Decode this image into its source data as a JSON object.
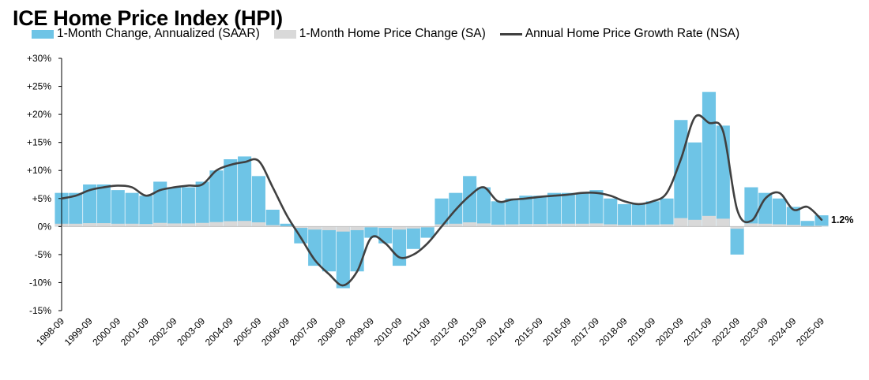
{
  "title": "ICE Home Price Index (HPI)",
  "chart_data": {
    "type": "bar",
    "title": "ICE Home Price Index (HPI)",
    "xlabel": "",
    "ylabel": "",
    "ylim": [
      -15,
      30
    ],
    "yticks": [
      30,
      25,
      20,
      15,
      10,
      5,
      0,
      -5,
      -10,
      -15
    ],
    "ytick_labels": [
      "+30%",
      "+25%",
      "+20%",
      "+15%",
      "+10%",
      "+5%",
      "0%",
      "-5%",
      "-10%",
      "-15%"
    ],
    "x_start": "1998-09",
    "x_end": "2025-09",
    "xtick_labels": [
      "1998-09",
      "1999-09",
      "2000-09",
      "2001-09",
      "2002-09",
      "2003-09",
      "2004-09",
      "2005-09",
      "2006-09",
      "2007-09",
      "2008-09",
      "2009-09",
      "2010-09",
      "2011-09",
      "2012-09",
      "2013-09",
      "2014-09",
      "2015-09",
      "2016-09",
      "2017-09",
      "2018-09",
      "2019-09",
      "2020-09",
      "2021-09",
      "2022-09",
      "2023-09",
      "2024-09",
      "2025-09"
    ],
    "grid": false,
    "legend_position": "top-left",
    "end_label": "1.2%",
    "series": [
      {
        "name": "1-Month Change, Annualized (SAAR)",
        "type": "bar",
        "color": "#6ec4e6",
        "x": [
          "1998-09",
          "1999-03",
          "1999-09",
          "2000-03",
          "2000-09",
          "2001-03",
          "2001-09",
          "2002-03",
          "2002-09",
          "2003-03",
          "2003-09",
          "2004-03",
          "2004-09",
          "2005-03",
          "2005-09",
          "2006-03",
          "2006-09",
          "2007-03",
          "2007-09",
          "2008-03",
          "2008-09",
          "2009-03",
          "2009-09",
          "2010-03",
          "2010-09",
          "2011-03",
          "2011-09",
          "2012-03",
          "2012-09",
          "2013-03",
          "2013-09",
          "2014-03",
          "2014-09",
          "2015-03",
          "2015-09",
          "2016-03",
          "2016-09",
          "2017-03",
          "2017-09",
          "2018-03",
          "2018-09",
          "2019-03",
          "2019-09",
          "2020-03",
          "2020-09",
          "2021-03",
          "2021-09",
          "2022-03",
          "2022-09",
          "2023-03",
          "2023-09",
          "2024-03",
          "2024-09",
          "2025-03",
          "2025-09"
        ],
        "values": [
          6,
          6,
          7.5,
          7.5,
          6.5,
          6,
          5.5,
          8,
          7,
          7,
          8,
          10,
          12,
          12.5,
          9,
          3,
          0.5,
          -3,
          -7,
          -8,
          -11,
          -8,
          -2,
          -3,
          -7,
          -4,
          -2,
          5,
          6,
          9,
          7,
          4.5,
          5,
          5.5,
          5.5,
          6,
          6,
          6,
          6.5,
          5,
          4,
          4,
          4.5,
          5,
          19,
          15,
          24,
          18,
          -5,
          7,
          6,
          5,
          3.5,
          1,
          2
        ]
      },
      {
        "name": "1-Month Home Price Change (SA)",
        "type": "bar",
        "color": "#d9d9d9",
        "x": [
          "1998-09",
          "1999-03",
          "1999-09",
          "2000-03",
          "2000-09",
          "2001-03",
          "2001-09",
          "2002-03",
          "2002-09",
          "2003-03",
          "2003-09",
          "2004-03",
          "2004-09",
          "2005-03",
          "2005-09",
          "2006-03",
          "2006-09",
          "2007-03",
          "2007-09",
          "2008-03",
          "2008-09",
          "2009-03",
          "2009-09",
          "2010-03",
          "2010-09",
          "2011-03",
          "2011-09",
          "2012-03",
          "2012-09",
          "2013-03",
          "2013-09",
          "2014-03",
          "2014-09",
          "2015-03",
          "2015-09",
          "2016-03",
          "2016-09",
          "2017-03",
          "2017-09",
          "2018-03",
          "2018-09",
          "2019-03",
          "2019-09",
          "2020-03",
          "2020-09",
          "2021-03",
          "2021-09",
          "2022-03",
          "2022-09",
          "2023-03",
          "2023-09",
          "2024-03",
          "2024-09",
          "2025-03",
          "2025-09"
        ],
        "values": [
          0.5,
          0.5,
          0.6,
          0.6,
          0.5,
          0.5,
          0.45,
          0.65,
          0.55,
          0.55,
          0.65,
          0.8,
          0.95,
          1.0,
          0.75,
          0.25,
          0.05,
          -0.25,
          -0.55,
          -0.65,
          -0.9,
          -0.65,
          -0.15,
          -0.25,
          -0.55,
          -0.35,
          -0.15,
          0.4,
          0.5,
          0.75,
          0.55,
          0.35,
          0.4,
          0.45,
          0.45,
          0.5,
          0.5,
          0.5,
          0.55,
          0.4,
          0.3,
          0.3,
          0.35,
          0.4,
          1.5,
          1.2,
          1.9,
          1.4,
          -0.4,
          0.55,
          0.5,
          0.4,
          0.3,
          0.1,
          0.15
        ]
      },
      {
        "name": "Annual Home Price Growth Rate (NSA)",
        "type": "line",
        "color": "#404040",
        "x": [
          "1998-09",
          "1999-03",
          "1999-09",
          "2000-03",
          "2000-09",
          "2001-03",
          "2001-09",
          "2002-03",
          "2002-09",
          "2003-03",
          "2003-09",
          "2004-03",
          "2004-09",
          "2005-03",
          "2005-09",
          "2006-03",
          "2006-09",
          "2007-03",
          "2007-09",
          "2008-03",
          "2008-09",
          "2009-03",
          "2009-09",
          "2010-03",
          "2010-09",
          "2011-03",
          "2011-09",
          "2012-03",
          "2012-09",
          "2013-03",
          "2013-09",
          "2014-03",
          "2014-09",
          "2015-03",
          "2015-09",
          "2016-03",
          "2016-09",
          "2017-03",
          "2017-09",
          "2018-03",
          "2018-09",
          "2019-03",
          "2019-09",
          "2020-03",
          "2020-09",
          "2021-03",
          "2021-09",
          "2022-03",
          "2022-09",
          "2023-03",
          "2023-09",
          "2024-03",
          "2024-09",
          "2025-03",
          "2025-09"
        ],
        "values": [
          5,
          5.5,
          6.5,
          7,
          7.3,
          7,
          5.5,
          6.5,
          7,
          7.3,
          7.5,
          10,
          11,
          11.5,
          11.7,
          7,
          2,
          -2,
          -6,
          -8.5,
          -10.5,
          -8,
          -2,
          -3,
          -5.5,
          -5,
          -3,
          0,
          3,
          5.5,
          7,
          4.5,
          4.8,
          5,
          5.3,
          5.5,
          5.7,
          6,
          6,
          5.5,
          4.5,
          4,
          4.5,
          6,
          12,
          19.5,
          18.5,
          17,
          3,
          1,
          5,
          6,
          3,
          3.5,
          1.2
        ]
      }
    ]
  }
}
